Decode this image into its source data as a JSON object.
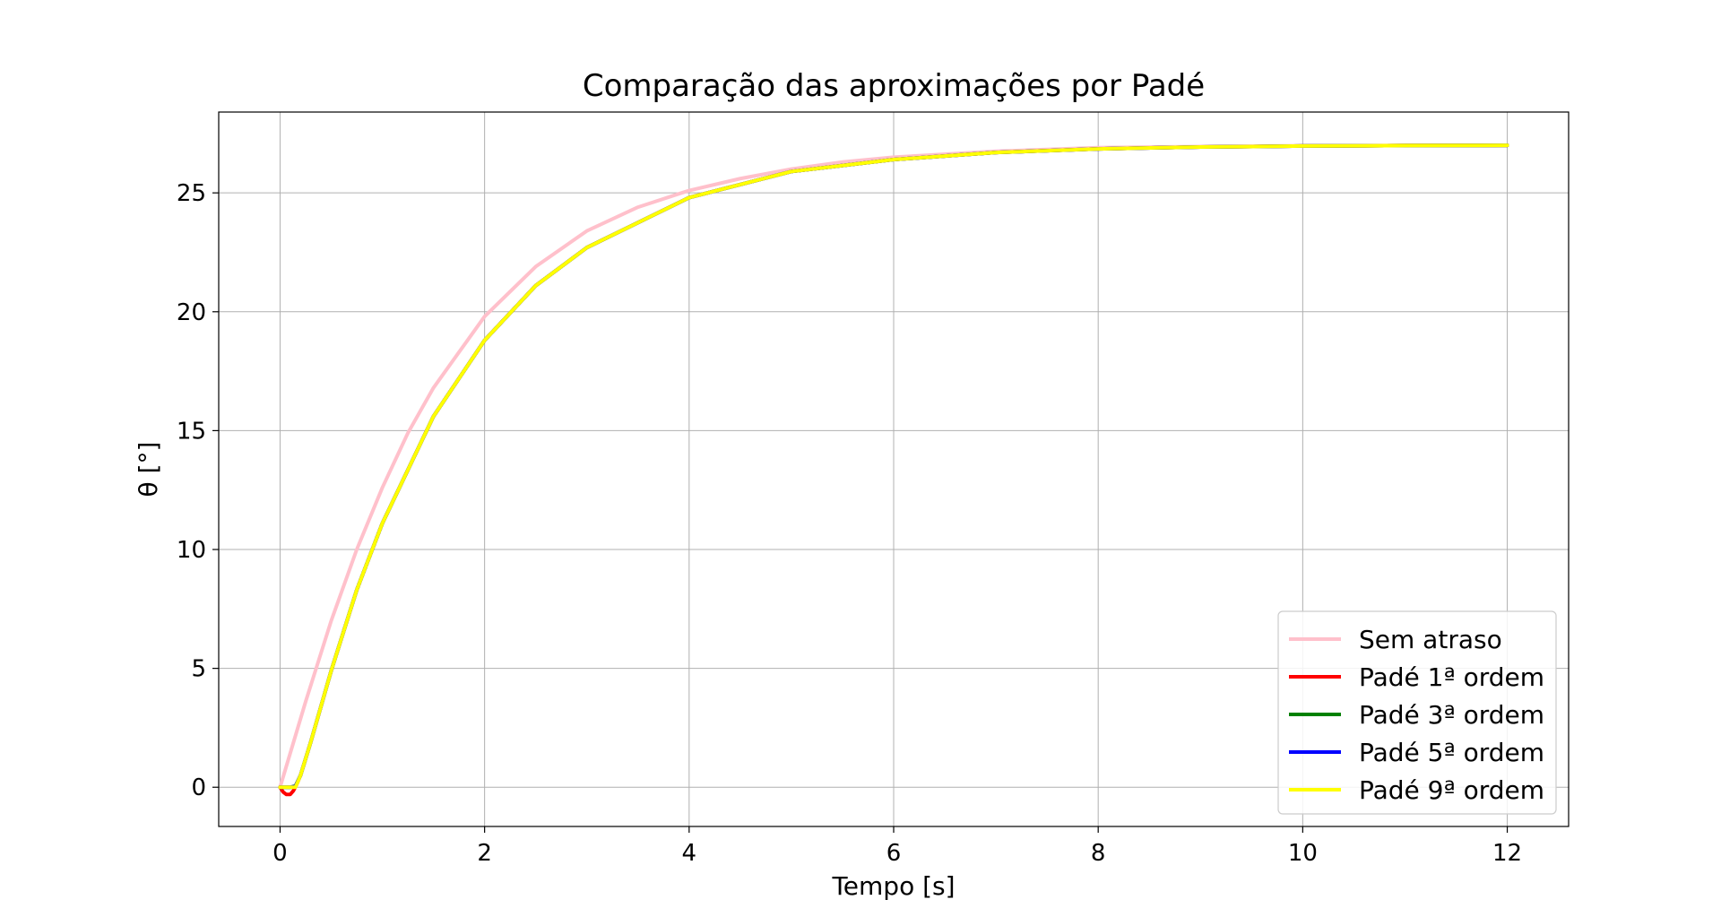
{
  "chart_data": {
    "type": "line",
    "title": "Comparação das aproximações por Padé",
    "xlabel": "Tempo [s]",
    "ylabel": "θ [°]",
    "xlim": [
      -0.6,
      12.6
    ],
    "ylim": [
      -1.65,
      28.4
    ],
    "xticks": [
      0,
      2,
      4,
      6,
      8,
      10,
      12
    ],
    "yticks": [
      0,
      5,
      10,
      15,
      20,
      25
    ],
    "grid": true,
    "legend_position": "lower-right",
    "series": [
      {
        "name": "Sem atraso",
        "color": "#ffc0cb",
        "x": [
          0,
          0.25,
          0.5,
          0.75,
          1,
          1.25,
          1.5,
          2,
          2.5,
          3,
          3.5,
          4,
          4.5,
          5,
          5.5,
          6,
          7,
          8,
          9,
          10,
          11,
          12
        ],
        "y": [
          0,
          3.6,
          7.0,
          10.0,
          12.6,
          14.9,
          16.8,
          19.8,
          21.9,
          23.4,
          24.4,
          25.1,
          25.6,
          26.0,
          26.3,
          26.5,
          26.75,
          26.9,
          26.95,
          26.98,
          27.0,
          27.0
        ]
      },
      {
        "name": "Padé 1ª ordem",
        "color": "#ff0000",
        "x": [
          0,
          0.03,
          0.06,
          0.1,
          0.13,
          0.16,
          0.2,
          0.3,
          0.5,
          0.75,
          1,
          1.5,
          2,
          2.5,
          3,
          4,
          5,
          6,
          7,
          8,
          9,
          10,
          11,
          12
        ],
        "y": [
          0,
          -0.2,
          -0.3,
          -0.3,
          -0.15,
          0.1,
          0.5,
          1.9,
          4.9,
          8.3,
          11.1,
          15.6,
          18.8,
          21.1,
          22.7,
          24.8,
          25.9,
          26.4,
          26.7,
          26.85,
          26.93,
          26.97,
          26.99,
          27.0
        ]
      },
      {
        "name": "Padé 3ª ordem",
        "color": "#008000",
        "x": [
          0,
          0.1,
          0.15,
          0.2,
          0.3,
          0.5,
          0.75,
          1,
          1.5,
          2,
          2.5,
          3,
          4,
          5,
          6,
          7,
          8,
          9,
          10,
          11,
          12
        ],
        "y": [
          0,
          0,
          0.05,
          0.5,
          1.9,
          4.9,
          8.3,
          11.1,
          15.6,
          18.8,
          21.1,
          22.7,
          24.8,
          25.9,
          26.4,
          26.7,
          26.85,
          26.93,
          26.97,
          26.99,
          27.0
        ]
      },
      {
        "name": "Padé 5ª ordem",
        "color": "#0000ff",
        "x": [
          0,
          0.1,
          0.15,
          0.2,
          0.3,
          0.5,
          0.75,
          1,
          1.5,
          2,
          2.5,
          3,
          4,
          5,
          6,
          7,
          8,
          9,
          10,
          11,
          12
        ],
        "y": [
          0,
          0,
          0.03,
          0.5,
          1.9,
          4.9,
          8.3,
          11.1,
          15.6,
          18.8,
          21.1,
          22.7,
          24.8,
          25.9,
          26.4,
          26.7,
          26.85,
          26.93,
          26.97,
          26.99,
          27.0
        ]
      },
      {
        "name": "Padé 9ª ordem",
        "color": "#ffff00",
        "x": [
          0,
          0.1,
          0.15,
          0.2,
          0.3,
          0.5,
          0.75,
          1,
          1.5,
          2,
          2.5,
          3,
          4,
          5,
          6,
          7,
          8,
          9,
          10,
          11,
          12
        ],
        "y": [
          0,
          0,
          0,
          0.5,
          1.9,
          4.9,
          8.3,
          11.1,
          15.6,
          18.8,
          21.1,
          22.7,
          24.8,
          25.9,
          26.4,
          26.7,
          26.85,
          26.93,
          26.97,
          26.99,
          27.0
        ]
      }
    ]
  }
}
